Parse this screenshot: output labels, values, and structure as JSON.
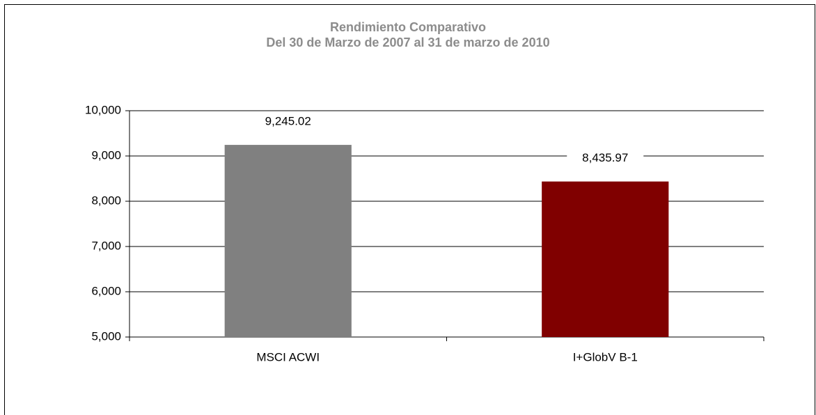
{
  "chart_data": {
    "type": "bar",
    "title": "Rendimiento Comparativo",
    "subtitle": "Del 30 de Marzo de 2007 al 31 de marzo de 2010",
    "categories": [
      "MSCI ACWI",
      "I+GlobV B-1"
    ],
    "values": [
      9245.02,
      8435.97
    ],
    "value_labels": [
      "9,245.02",
      "8,435.97"
    ],
    "colors": [
      "#808080",
      "#800000"
    ],
    "ylim": [
      5000,
      10000
    ],
    "yticks": [
      {
        "value": 5000,
        "label": "5,000"
      },
      {
        "value": 6000,
        "label": "6,000"
      },
      {
        "value": 7000,
        "label": "7,000"
      },
      {
        "value": 8000,
        "label": "8,000"
      },
      {
        "value": 9000,
        "label": "9,000"
      },
      {
        "value": 10000,
        "label": "10,000"
      }
    ],
    "grid": true
  }
}
